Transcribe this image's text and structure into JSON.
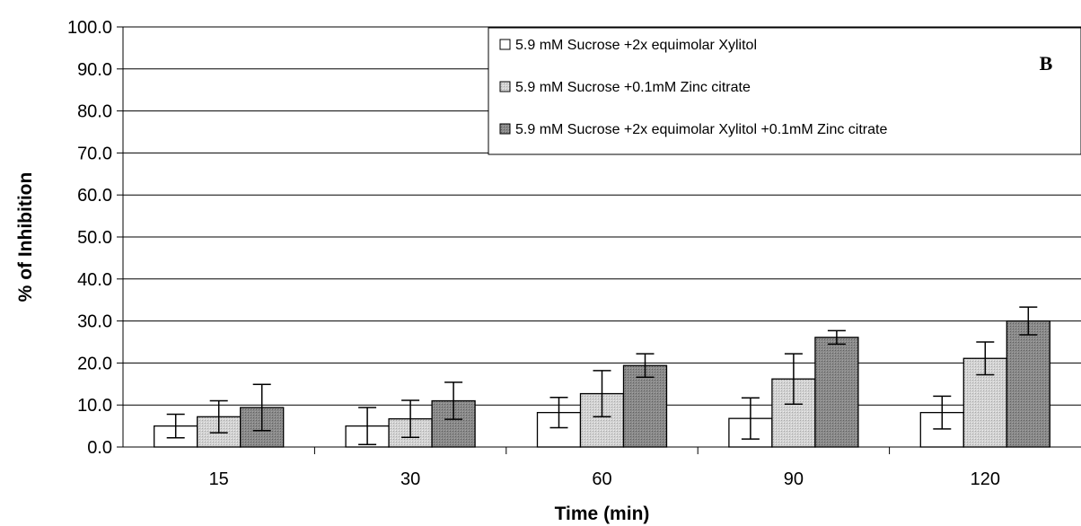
{
  "chart_data": {
    "type": "bar",
    "title": "",
    "panel_label": "B",
    "xlabel": "Time (min)",
    "ylabel": "% of Inhibition",
    "ylim": [
      0,
      100
    ],
    "yticks": [
      "0.0",
      "10.0",
      "20.0",
      "30.0",
      "40.0",
      "50.0",
      "60.0",
      "70.0",
      "80.0",
      "90.0",
      "100.0"
    ],
    "categories": [
      "15",
      "30",
      "60",
      "90",
      "120"
    ],
    "grid": "horizontal",
    "legend_position": "top-right",
    "series": [
      {
        "name": "5.9 mM Sucrose +2x equimolar Xylitol",
        "fill": "#ffffff",
        "values": [
          5.0,
          5.0,
          8.2,
          6.8,
          8.2
        ],
        "errors": [
          2.8,
          4.4,
          3.6,
          4.9,
          3.9
        ]
      },
      {
        "name": "5.9 mM Sucrose +0.1mM Zinc citrate",
        "fill": "#c8c8c8",
        "values": [
          7.2,
          6.7,
          12.7,
          16.2,
          21.1
        ],
        "errors": [
          3.8,
          4.4,
          5.5,
          6.0,
          3.9
        ]
      },
      {
        "name": "5.9 mM Sucrose +2x equimolar Xylitol +0.1mM Zinc citrate",
        "fill": "#828282",
        "values": [
          9.4,
          11.0,
          19.4,
          26.1,
          30.0
        ],
        "errors": [
          5.5,
          4.4,
          2.8,
          1.6,
          3.3
        ]
      }
    ]
  }
}
